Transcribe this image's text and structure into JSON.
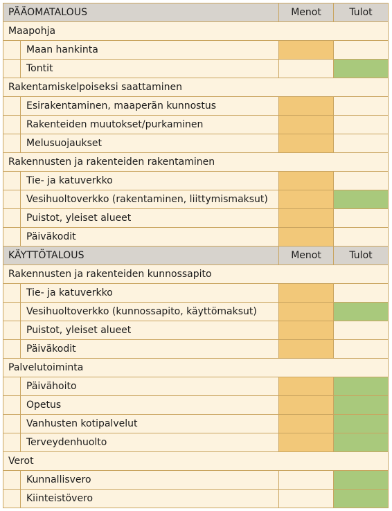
{
  "sections": [
    {
      "title": "PÄÄOMATALOUS",
      "col_menot": "Menot",
      "col_tulot": "Tulot",
      "groups": [
        {
          "label": "Maapohja",
          "items": [
            {
              "label": "Maan hankinta",
              "menot": true,
              "tulot": false
            },
            {
              "label": "Tontit",
              "menot": false,
              "tulot": true
            }
          ]
        },
        {
          "label": "Rakentamiskelpoiseksi saattaminen",
          "items": [
            {
              "label": "Esirakentaminen, maaperän kunnostus",
              "menot": true,
              "tulot": false
            },
            {
              "label": "Rakenteiden muutokset/purkaminen",
              "menot": true,
              "tulot": false
            },
            {
              "label": "Melusuojaukset",
              "menot": true,
              "tulot": false
            }
          ]
        },
        {
          "label": "Rakennusten ja rakenteiden rakentaminen",
          "items": [
            {
              "label": "Tie- ja katuverkko",
              "menot": true,
              "tulot": false
            },
            {
              "label": "Vesihuoltoverkko (rakentaminen, liittymismaksut)",
              "menot": true,
              "tulot": true
            },
            {
              "label": "Puistot, yleiset alueet",
              "menot": true,
              "tulot": false
            },
            {
              "label": "Päiväkodit",
              "menot": true,
              "tulot": false
            }
          ]
        }
      ]
    },
    {
      "title": "KÄYTTÖTALOUS",
      "col_menot": "Menot",
      "col_tulot": "Tulot",
      "groups": [
        {
          "label": "Rakennusten ja rakenteiden kunnossapito",
          "items": [
            {
              "label": "Tie- ja katuverkko",
              "menot": true,
              "tulot": false
            },
            {
              "label": "Vesihuoltoverkko (kunnossapito, käyttömaksut)",
              "menot": true,
              "tulot": true
            },
            {
              "label": "Puistot, yleiset alueet",
              "menot": true,
              "tulot": false
            },
            {
              "label": "Päiväkodit",
              "menot": true,
              "tulot": false
            }
          ]
        },
        {
          "label": "Palvelutoiminta",
          "items": [
            {
              "label": "Päivähoito",
              "menot": true,
              "tulot": true
            },
            {
              "label": "Opetus",
              "menot": true,
              "tulot": true
            },
            {
              "label": "Vanhusten kotipalvelut",
              "menot": true,
              "tulot": true
            },
            {
              "label": "Terveydenhuolto",
              "menot": true,
              "tulot": true
            }
          ]
        },
        {
          "label": "Verot",
          "items": [
            {
              "label": "Kunnallisvero",
              "menot": false,
              "tulot": true
            },
            {
              "label": "Kiinteistövero",
              "menot": false,
              "tulot": true
            }
          ]
        }
      ]
    }
  ],
  "colors": {
    "background": "#fdf3df",
    "header": "#d7d3cd",
    "menot": "#f2c879",
    "tulot": "#a9c97c",
    "border": "#c9a45f"
  }
}
